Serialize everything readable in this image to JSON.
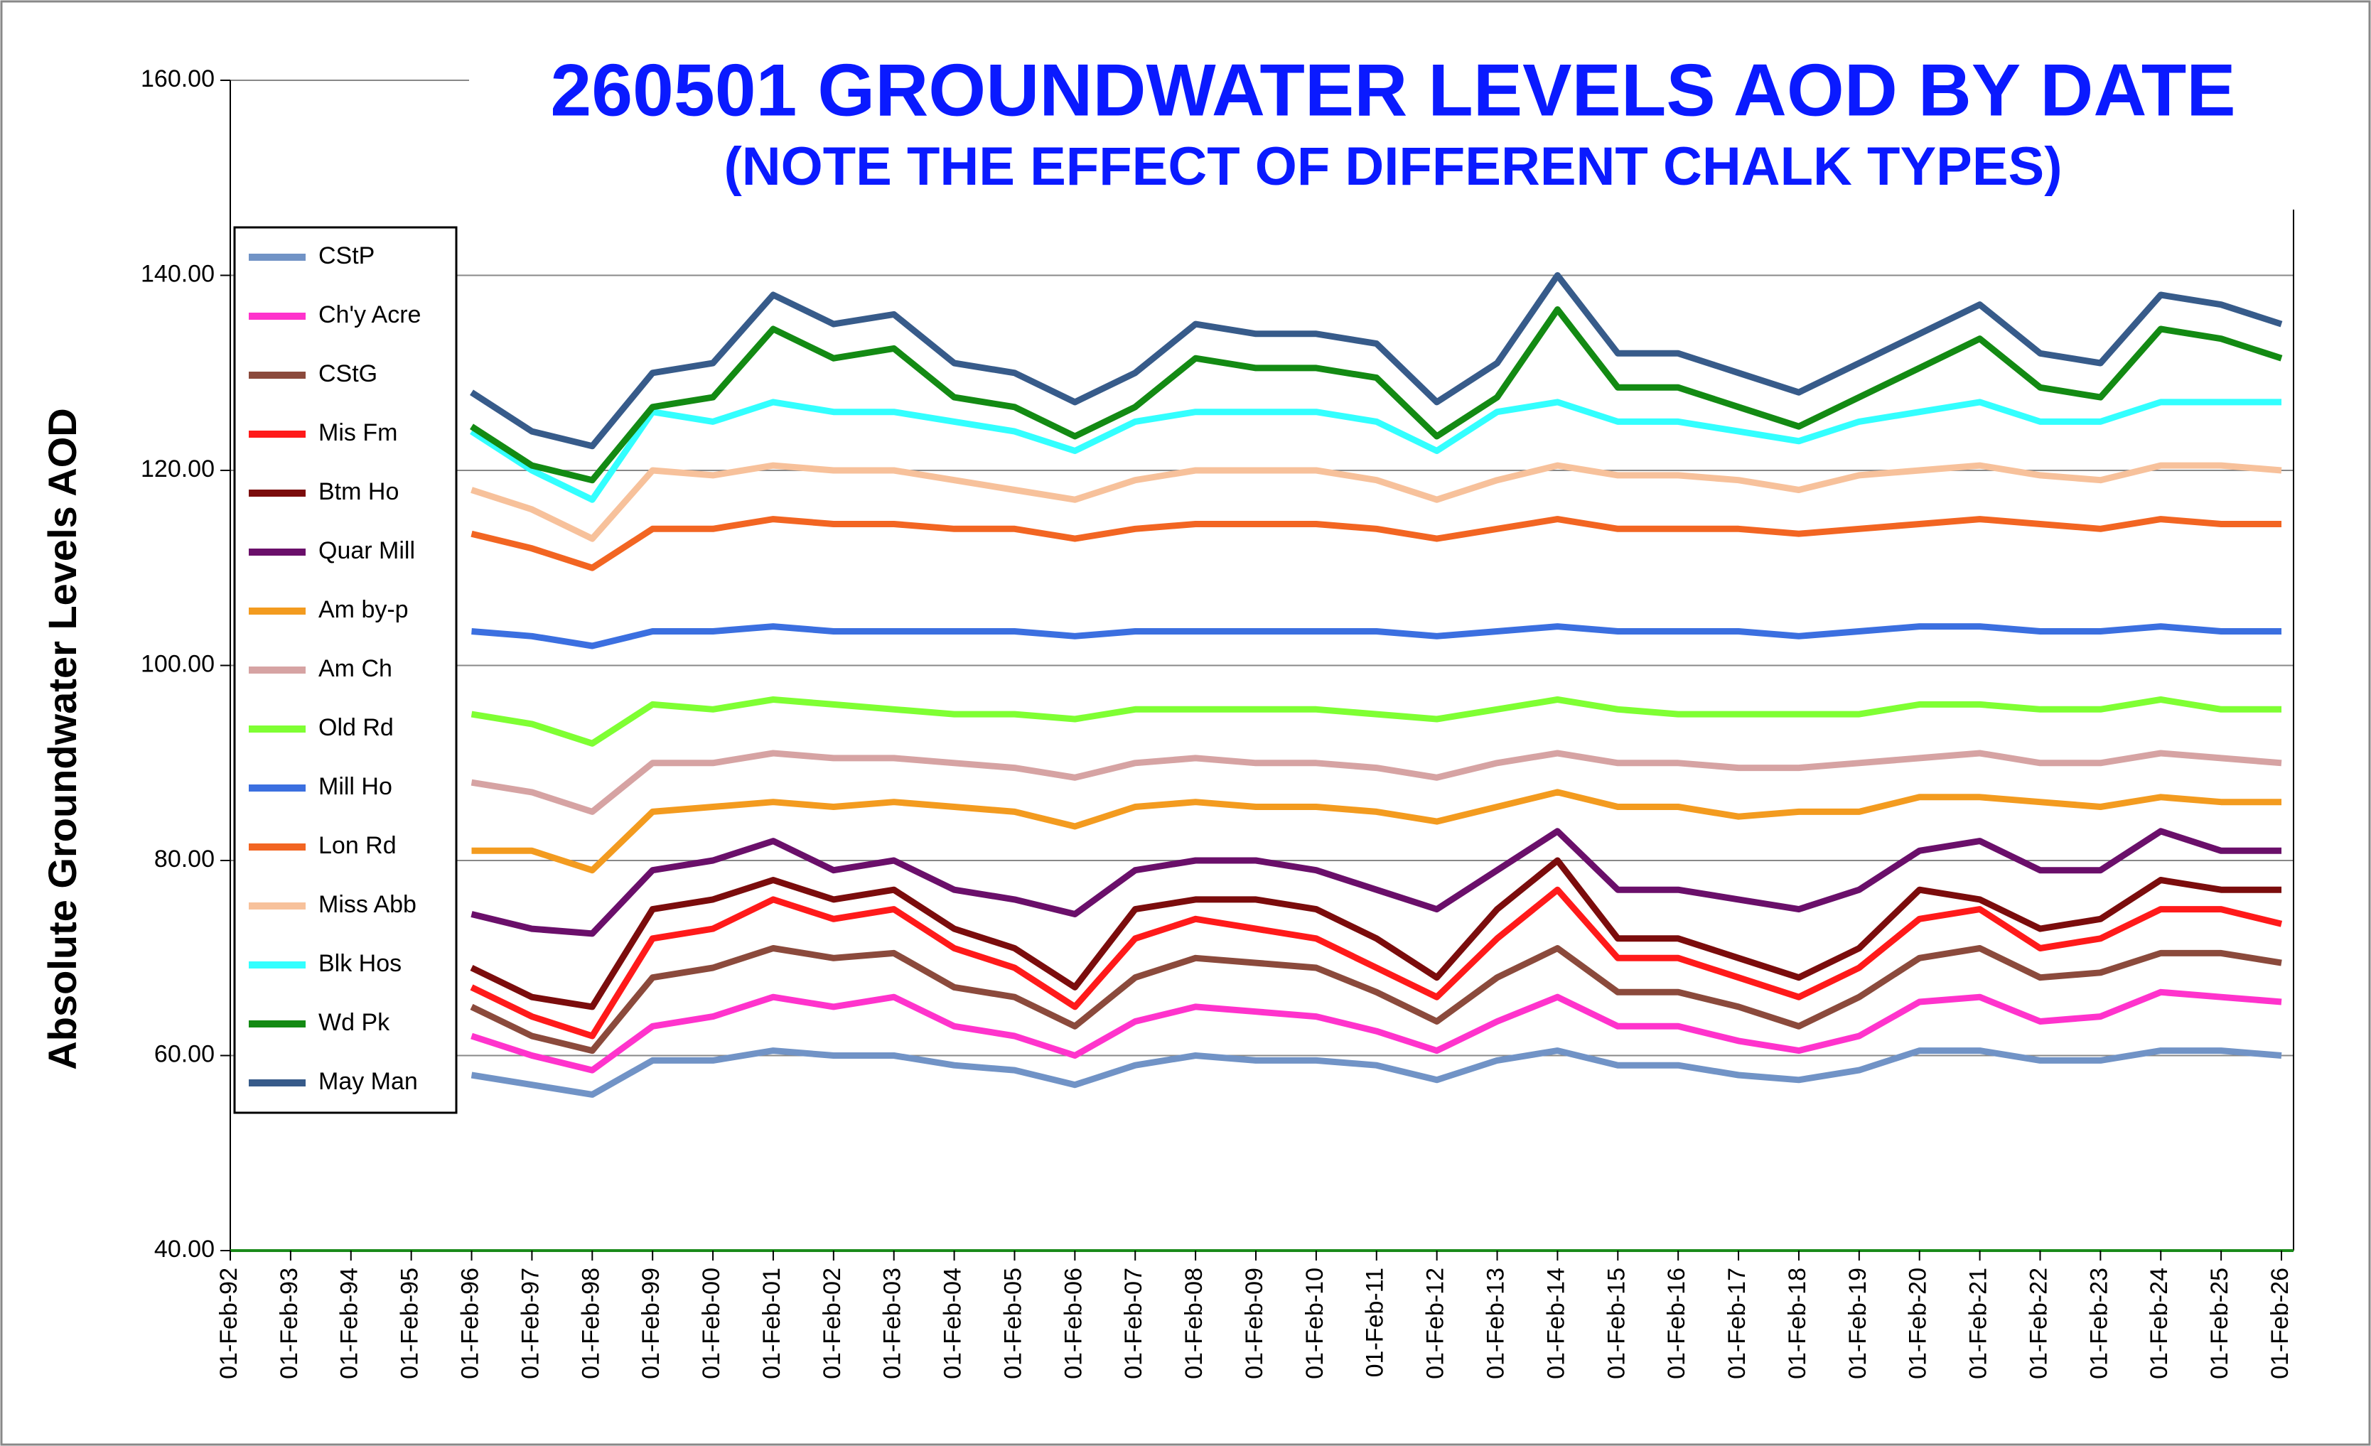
{
  "chart_data": {
    "type": "line",
    "title": "260501 GROUNDWATER LEVELS AOD BY DATE",
    "subtitle": "(NOTE THE EFFECT OF DIFFERENT CHALK TYPES)",
    "y_label": "Absolute Groundwater Levels AOD",
    "categories": [
      "01-Feb-92",
      "01-Feb-93",
      "01-Feb-94",
      "01-Feb-95",
      "01-Feb-96",
      "01-Feb-97",
      "01-Feb-98",
      "01-Feb-99",
      "01-Feb-00",
      "01-Feb-01",
      "01-Feb-02",
      "01-Feb-03",
      "01-Feb-04",
      "01-Feb-05",
      "01-Feb-06",
      "01-Feb-07",
      "01-Feb-08",
      "01-Feb-09",
      "01-Feb-10",
      "01-Feb-11",
      "01-Feb-12",
      "01-Feb-13",
      "01-Feb-14",
      "01-Feb-15",
      "01-Feb-16",
      "01-Feb-17",
      "01-Feb-18",
      "01-Feb-19",
      "01-Feb-20",
      "01-Feb-21",
      "01-Feb-22",
      "01-Feb-23",
      "01-Feb-24",
      "01-Feb-25",
      "01-Feb-26"
    ],
    "ylim": [
      40,
      160
    ],
    "yticks": [
      {
        "value": 40,
        "label": "40.00"
      },
      {
        "value": 60,
        "label": "60.00"
      },
      {
        "value": 80,
        "label": "80.00"
      },
      {
        "value": 100,
        "label": "100.00"
      },
      {
        "value": 120,
        "label": "120.00"
      },
      {
        "value": 140,
        "label": "140.00"
      },
      {
        "value": 160,
        "label": "160.00"
      }
    ],
    "grid": true,
    "legend": "left",
    "series": [
      {
        "name": "CStP",
        "color": "#7193c6",
        "values": [
          null,
          null,
          null,
          null,
          58,
          57,
          56,
          59.5,
          59.5,
          60.5,
          60,
          60,
          59,
          58.5,
          57,
          59,
          60,
          59.5,
          59.5,
          59,
          57.5,
          59.5,
          60.5,
          59,
          59,
          58,
          57.5,
          58.5,
          60.5,
          60.5,
          59.5,
          59.5,
          60.5,
          60.5,
          60
        ]
      },
      {
        "name": "Ch'y Acre",
        "color": "#ff33cc",
        "values": [
          null,
          null,
          null,
          null,
          62,
          60,
          58.5,
          63,
          64,
          66,
          65,
          66,
          63,
          62,
          60,
          63.5,
          65,
          64.5,
          64,
          62.5,
          60.5,
          63.5,
          66,
          63,
          63,
          61.5,
          60.5,
          62,
          65.5,
          66,
          63.5,
          64,
          66.5,
          66,
          65.5
        ]
      },
      {
        "name": "CStG",
        "color": "#8b4a3c",
        "values": [
          null,
          null,
          null,
          null,
          65,
          62,
          60.5,
          68,
          69,
          71,
          70,
          70.5,
          67,
          66,
          63,
          68,
          70,
          69.5,
          69,
          66.5,
          63.5,
          68,
          71,
          66.5,
          66.5,
          65,
          63,
          66,
          70,
          71,
          68,
          68.5,
          70.5,
          70.5,
          69.5
        ]
      },
      {
        "name": "Mis Fm",
        "color": "#ff1a1a",
        "values": [
          null,
          null,
          null,
          null,
          67,
          64,
          62,
          72,
          73,
          76,
          74,
          75,
          71,
          69,
          65,
          72,
          74,
          73,
          72,
          69,
          66,
          72,
          77,
          70,
          70,
          68,
          66,
          69,
          74,
          75,
          71,
          72,
          75,
          75,
          73.5
        ]
      },
      {
        "name": "Btm Ho",
        "color": "#7b0c0c",
        "values": [
          null,
          null,
          null,
          null,
          69,
          66,
          65,
          75,
          76,
          78,
          76,
          77,
          73,
          71,
          67,
          75,
          76,
          76,
          75,
          72,
          68,
          75,
          80,
          72,
          72,
          70,
          68,
          71,
          77,
          76,
          73,
          74,
          78,
          77,
          77
        ]
      },
      {
        "name": "Quar Mill",
        "color": "#6a0f6a",
        "values": [
          null,
          null,
          null,
          null,
          74.5,
          73,
          72.5,
          79,
          80,
          82,
          79,
          80,
          77,
          76,
          74.5,
          79,
          80,
          80,
          79,
          77,
          75,
          79,
          83,
          77,
          77,
          76,
          75,
          77,
          81,
          82,
          79,
          79,
          83,
          81,
          81
        ]
      },
      {
        "name": "Am by-p",
        "color": "#f39b1f",
        "values": [
          null,
          null,
          null,
          null,
          81,
          81,
          79,
          85,
          85.5,
          86,
          85.5,
          86,
          85.5,
          85,
          83.5,
          85.5,
          86,
          85.5,
          85.5,
          85,
          84,
          85.5,
          87,
          85.5,
          85.5,
          84.5,
          85,
          85,
          86.5,
          86.5,
          86,
          85.5,
          86.5,
          86,
          86
        ]
      },
      {
        "name": "Am Ch",
        "color": "#d6a3a3",
        "values": [
          null,
          null,
          null,
          null,
          88,
          87,
          85,
          90,
          90,
          91,
          90.5,
          90.5,
          90,
          89.5,
          88.5,
          90,
          90.5,
          90,
          90,
          89.5,
          88.5,
          90,
          91,
          90,
          90,
          89.5,
          89.5,
          90,
          90.5,
          91,
          90,
          90,
          91,
          90.5,
          90
        ]
      },
      {
        "name": "Old Rd",
        "color": "#7fff33",
        "values": [
          null,
          null,
          null,
          null,
          95,
          94,
          92,
          96,
          95.5,
          96.5,
          96,
          95.5,
          95,
          95,
          94.5,
          95.5,
          95.5,
          95.5,
          95.5,
          95,
          94.5,
          95.5,
          96.5,
          95.5,
          95,
          95,
          95,
          95,
          96,
          96,
          95.5,
          95.5,
          96.5,
          95.5,
          95.5
        ]
      },
      {
        "name": "Mill Ho",
        "color": "#3b6fe0",
        "values": [
          null,
          null,
          null,
          null,
          103.5,
          103,
          102,
          103.5,
          103.5,
          104,
          103.5,
          103.5,
          103.5,
          103.5,
          103,
          103.5,
          103.5,
          103.5,
          103.5,
          103.5,
          103,
          103.5,
          104,
          103.5,
          103.5,
          103.5,
          103,
          103.5,
          104,
          104,
          103.5,
          103.5,
          104,
          103.5,
          103.5
        ]
      },
      {
        "name": "Lon Rd",
        "color": "#f26522",
        "values": [
          null,
          null,
          null,
          null,
          113.5,
          112,
          110,
          114,
          114,
          115,
          114.5,
          114.5,
          114,
          114,
          113,
          114,
          114.5,
          114.5,
          114.5,
          114,
          113,
          114,
          115,
          114,
          114,
          114,
          113.5,
          114,
          114.5,
          115,
          114.5,
          114,
          115,
          114.5,
          114.5
        ]
      },
      {
        "name": "Miss Abb",
        "color": "#f7c19b",
        "values": [
          null,
          null,
          null,
          null,
          118,
          116,
          113,
          120,
          119.5,
          120.5,
          120,
          120,
          119,
          118,
          117,
          119,
          120,
          120,
          120,
          119,
          117,
          119,
          120.5,
          119.5,
          119.5,
          119,
          118,
          119.5,
          120,
          120.5,
          119.5,
          119,
          120.5,
          120.5,
          120
        ]
      },
      {
        "name": "Blk Hos",
        "color": "#33ffff",
        "values": [
          null,
          null,
          null,
          null,
          124,
          120,
          117,
          126,
          125,
          127,
          126,
          126,
          125,
          124,
          122,
          125,
          126,
          126,
          126,
          125,
          122,
          126,
          127,
          125,
          125,
          124,
          123,
          125,
          126,
          127,
          125,
          125,
          127,
          127,
          127
        ]
      },
      {
        "name": "Wd Pk",
        "color": "#138a13",
        "values": [
          null,
          null,
          null,
          null,
          124.5,
          120.5,
          119,
          126.5,
          127.5,
          134.5,
          131.5,
          132.5,
          127.5,
          126.5,
          123.5,
          126.5,
          131.5,
          130.5,
          130.5,
          129.5,
          123.5,
          127.5,
          136.5,
          128.5,
          128.5,
          126.5,
          124.5,
          127.5,
          130.5,
          133.5,
          128.5,
          127.5,
          134.5,
          133.5,
          131.5
        ]
      },
      {
        "name": "May Man",
        "color": "#375b8a",
        "values": [
          null,
          null,
          null,
          null,
          128,
          124,
          122.5,
          130,
          131,
          138,
          135,
          136,
          131,
          130,
          127,
          130,
          135,
          134,
          134,
          133,
          127,
          131,
          140,
          132,
          132,
          130,
          128,
          131,
          134,
          137,
          132,
          131,
          138,
          137,
          135
        ]
      }
    ]
  }
}
